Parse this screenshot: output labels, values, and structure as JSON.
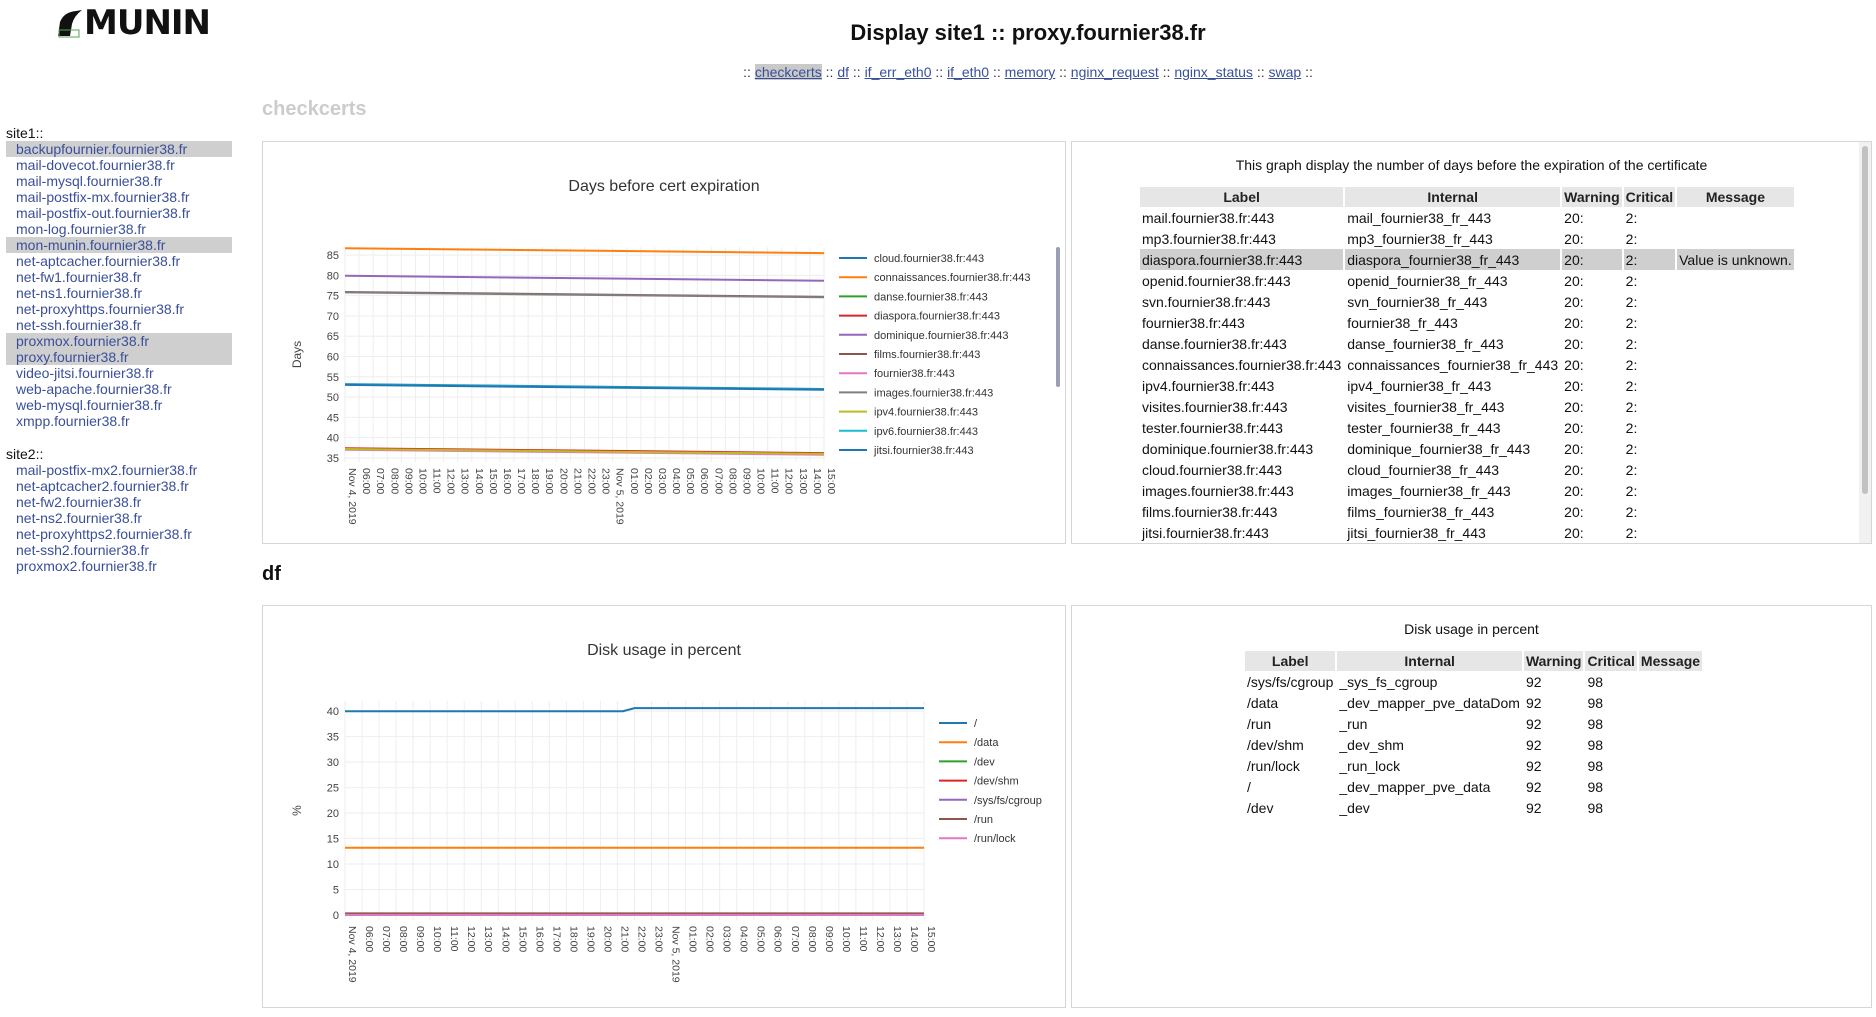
{
  "app": {
    "logo_text": "MUNIN",
    "title": "Display site1 :: proxy.fournier38.fr"
  },
  "nav": {
    "sep": "::",
    "plugins": [
      "checkcerts",
      "df",
      "if_err_eth0",
      "if_eth0",
      "memory",
      "nginx_request",
      "nginx_status",
      "swap"
    ],
    "active": "checkcerts"
  },
  "sidebar": {
    "groups": [
      {
        "name": "site1::",
        "hosts": [
          {
            "label": "backupfournier.fournier38.fr",
            "highlight": true
          },
          {
            "label": "mail-dovecot.fournier38.fr",
            "highlight": false
          },
          {
            "label": "mail-mysql.fournier38.fr",
            "highlight": false
          },
          {
            "label": "mail-postfix-mx.fournier38.fr",
            "highlight": false
          },
          {
            "label": "mail-postfix-out.fournier38.fr",
            "highlight": false
          },
          {
            "label": "mon-log.fournier38.fr",
            "highlight": false
          },
          {
            "label": "mon-munin.fournier38.fr",
            "highlight": true
          },
          {
            "label": "net-aptcacher.fournier38.fr",
            "highlight": false
          },
          {
            "label": "net-fw1.fournier38.fr",
            "highlight": false
          },
          {
            "label": "net-ns1.fournier38.fr",
            "highlight": false
          },
          {
            "label": "net-proxyhttps.fournier38.fr",
            "highlight": false
          },
          {
            "label": "net-ssh.fournier38.fr",
            "highlight": false
          },
          {
            "label": "proxmox.fournier38.fr",
            "highlight": true
          },
          {
            "label": "proxy.fournier38.fr",
            "highlight": true
          },
          {
            "label": "video-jitsi.fournier38.fr",
            "highlight": false
          },
          {
            "label": "web-apache.fournier38.fr",
            "highlight": false
          },
          {
            "label": "web-mysql.fournier38.fr",
            "highlight": false
          },
          {
            "label": "xmpp.fournier38.fr",
            "highlight": false
          }
        ]
      },
      {
        "name": "site2::",
        "hosts": [
          {
            "label": "mail-postfix-mx2.fournier38.fr",
            "highlight": false
          },
          {
            "label": "net-aptcacher2.fournier38.fr",
            "highlight": false
          },
          {
            "label": "net-fw2.fournier38.fr",
            "highlight": false
          },
          {
            "label": "net-ns2.fournier38.fr",
            "highlight": false
          },
          {
            "label": "net-proxyhttps2.fournier38.fr",
            "highlight": false
          },
          {
            "label": "net-ssh2.fournier38.fr",
            "highlight": false
          },
          {
            "label": "proxmox2.fournier38.fr",
            "highlight": false
          }
        ]
      }
    ]
  },
  "sections": {
    "checkcerts": {
      "title": "checkcerts",
      "info_caption": "This graph display the number of days before the expiration of the certificate",
      "columns": [
        "Label",
        "Internal",
        "Warning",
        "Critical",
        "Message"
      ],
      "rows": [
        {
          "label": "mail.fournier38.fr:443",
          "internal": "mail_fournier38_fr_443",
          "warning": "20:",
          "critical": "2:",
          "message": "",
          "highlight": false
        },
        {
          "label": "mp3.fournier38.fr:443",
          "internal": "mp3_fournier38_fr_443",
          "warning": "20:",
          "critical": "2:",
          "message": "",
          "highlight": false
        },
        {
          "label": "diaspora.fournier38.fr:443",
          "internal": "diaspora_fournier38_fr_443",
          "warning": "20:",
          "critical": "2:",
          "message": "Value is unknown.",
          "highlight": true
        },
        {
          "label": "openid.fournier38.fr:443",
          "internal": "openid_fournier38_fr_443",
          "warning": "20:",
          "critical": "2:",
          "message": "",
          "highlight": false
        },
        {
          "label": "svn.fournier38.fr:443",
          "internal": "svn_fournier38_fr_443",
          "warning": "20:",
          "critical": "2:",
          "message": "",
          "highlight": false
        },
        {
          "label": "fournier38.fr:443",
          "internal": "fournier38_fr_443",
          "warning": "20:",
          "critical": "2:",
          "message": "",
          "highlight": false
        },
        {
          "label": "danse.fournier38.fr:443",
          "internal": "danse_fournier38_fr_443",
          "warning": "20:",
          "critical": "2:",
          "message": "",
          "highlight": false
        },
        {
          "label": "connaissances.fournier38.fr:443",
          "internal": "connaissances_fournier38_fr_443",
          "warning": "20:",
          "critical": "2:",
          "message": "",
          "highlight": false
        },
        {
          "label": "ipv4.fournier38.fr:443",
          "internal": "ipv4_fournier38_fr_443",
          "warning": "20:",
          "critical": "2:",
          "message": "",
          "highlight": false
        },
        {
          "label": "visites.fournier38.fr:443",
          "internal": "visites_fournier38_fr_443",
          "warning": "20:",
          "critical": "2:",
          "message": "",
          "highlight": false
        },
        {
          "label": "tester.fournier38.fr:443",
          "internal": "tester_fournier38_fr_443",
          "warning": "20:",
          "critical": "2:",
          "message": "",
          "highlight": false
        },
        {
          "label": "dominique.fournier38.fr:443",
          "internal": "dominique_fournier38_fr_443",
          "warning": "20:",
          "critical": "2:",
          "message": "",
          "highlight": false
        },
        {
          "label": "cloud.fournier38.fr:443",
          "internal": "cloud_fournier38_fr_443",
          "warning": "20:",
          "critical": "2:",
          "message": "",
          "highlight": false
        },
        {
          "label": "images.fournier38.fr:443",
          "internal": "images_fournier38_fr_443",
          "warning": "20:",
          "critical": "2:",
          "message": "",
          "highlight": false
        },
        {
          "label": "films.fournier38.fr:443",
          "internal": "films_fournier38_fr_443",
          "warning": "20:",
          "critical": "2:",
          "message": "",
          "highlight": false
        },
        {
          "label": "jitsi.fournier38.fr:443",
          "internal": "jitsi_fournier38_fr_443",
          "warning": "20:",
          "critical": "2:",
          "message": "",
          "highlight": false
        }
      ]
    },
    "df": {
      "title": "df",
      "info_caption": "Disk usage in percent",
      "columns": [
        "Label",
        "Internal",
        "Warning",
        "Critical",
        "Message"
      ],
      "rows": [
        {
          "label": "/sys/fs/cgroup",
          "internal": "_sys_fs_cgroup",
          "warning": "92",
          "critical": "98",
          "message": "",
          "highlight": false
        },
        {
          "label": "/data",
          "internal": "_dev_mapper_pve_dataDom",
          "warning": "92",
          "critical": "98",
          "message": "",
          "highlight": false
        },
        {
          "label": "/run",
          "internal": "_run",
          "warning": "92",
          "critical": "98",
          "message": "",
          "highlight": false
        },
        {
          "label": "/dev/shm",
          "internal": "_dev_shm",
          "warning": "92",
          "critical": "98",
          "message": "",
          "highlight": false
        },
        {
          "label": "/run/lock",
          "internal": "_run_lock",
          "warning": "92",
          "critical": "98",
          "message": "",
          "highlight": false
        },
        {
          "label": "/",
          "internal": "_dev_mapper_pve_data",
          "warning": "92",
          "critical": "98",
          "message": "",
          "highlight": false
        },
        {
          "label": "/dev",
          "internal": "_dev",
          "warning": "92",
          "critical": "98",
          "message": "",
          "highlight": false
        }
      ]
    }
  },
  "chart_data": [
    {
      "id": "checkcerts",
      "type": "line",
      "title": "Days before cert expiration",
      "ylabel": "Days",
      "xlabel": "",
      "ylim": [
        34,
        87
      ],
      "yticks": [
        35,
        40,
        45,
        50,
        55,
        60,
        65,
        70,
        75,
        80,
        85
      ],
      "grid": true,
      "legend_position": "right",
      "x": [
        "Nov 4, 2019",
        "06:00",
        "07:00",
        "08:00",
        "09:00",
        "10:00",
        "11:00",
        "12:00",
        "13:00",
        "14:00",
        "15:00",
        "16:00",
        "17:00",
        "18:00",
        "19:00",
        "20:00",
        "21:00",
        "22:00",
        "23:00",
        "Nov 5, 2019",
        "01:00",
        "02:00",
        "03:00",
        "04:00",
        "05:00",
        "06:00",
        "07:00",
        "08:00",
        "09:00",
        "10:00",
        "11:00",
        "12:00",
        "13:00",
        "14:00",
        "15:00"
      ],
      "series": [
        {
          "name": "cloud.fournier38.fr:443",
          "color": "#1f77b4",
          "start": 53.2,
          "end": 52.0
        },
        {
          "name": "connaissances.fournier38.fr:443",
          "color": "#ff7f0e",
          "start": 86.7,
          "end": 85.5
        },
        {
          "name": "danse.fournier38.fr:443",
          "color": "#2ca02c",
          "start": 37.3,
          "end": 36.1
        },
        {
          "name": "diaspora.fournier38.fr:443",
          "color": "#d62728",
          "start": 37.4,
          "end": 36.2
        },
        {
          "name": "dominique.fournier38.fr:443",
          "color": "#9467bd",
          "start": 79.9,
          "end": 78.7
        },
        {
          "name": "films.fournier38.fr:443",
          "color": "#8c564b",
          "start": 75.9,
          "end": 74.7
        },
        {
          "name": "fournier38.fr:443",
          "color": "#e377c2",
          "start": 37.0,
          "end": 35.8
        },
        {
          "name": "images.fournier38.fr:443",
          "color": "#7f7f7f",
          "start": 75.8,
          "end": 74.6
        },
        {
          "name": "ipv4.fournier38.fr:443",
          "color": "#bcbd22",
          "start": 37.2,
          "end": 36.0
        },
        {
          "name": "ipv6.fournier38.fr:443",
          "color": "#17becf",
          "start": 53.1,
          "end": 51.9
        },
        {
          "name": "jitsi.fournier38.fr:443",
          "color": "#1f77b4",
          "start": 53.0,
          "end": 51.8
        }
      ]
    },
    {
      "id": "df",
      "type": "line",
      "title": "Disk usage in percent",
      "ylabel": "%",
      "xlabel": "",
      "ylim": [
        -1,
        42
      ],
      "yticks": [
        0,
        5,
        10,
        15,
        20,
        25,
        30,
        35,
        40
      ],
      "grid": true,
      "legend_position": "right",
      "x": [
        "Nov 4, 2019",
        "06:00",
        "07:00",
        "08:00",
        "09:00",
        "10:00",
        "11:00",
        "12:00",
        "13:00",
        "14:00",
        "15:00",
        "16:00",
        "17:00",
        "18:00",
        "19:00",
        "20:00",
        "21:00",
        "22:00",
        "23:00",
        "Nov 5, 2019",
        "01:00",
        "02:00",
        "03:00",
        "04:00",
        "05:00",
        "06:00",
        "07:00",
        "08:00",
        "09:00",
        "10:00",
        "11:00",
        "12:00",
        "13:00",
        "14:00",
        "15:00"
      ],
      "series": [
        {
          "name": "/",
          "color": "#1f77b4",
          "points": [
            [
              0,
              40.0
            ],
            [
              0.48,
              40.0
            ],
            [
              0.5,
              40.6
            ],
            [
              1,
              40.6
            ]
          ]
        },
        {
          "name": "/data",
          "color": "#ff7f0e",
          "points": [
            [
              0,
              13.2
            ],
            [
              1,
              13.2
            ]
          ]
        },
        {
          "name": "/dev",
          "color": "#2ca02c",
          "points": [
            [
              0,
              0.0
            ],
            [
              1,
              0.0
            ]
          ]
        },
        {
          "name": "/dev/shm",
          "color": "#d62728",
          "points": [
            [
              0,
              0.1
            ],
            [
              1,
              0.1
            ]
          ]
        },
        {
          "name": "/sys/fs/cgroup",
          "color": "#9467bd",
          "points": [
            [
              0,
              0.0
            ],
            [
              1,
              0.0
            ]
          ]
        },
        {
          "name": "/run",
          "color": "#8c564b",
          "points": [
            [
              0,
              0.3
            ],
            [
              1,
              0.3
            ]
          ]
        },
        {
          "name": "/run/lock",
          "color": "#e377c2",
          "points": [
            [
              0,
              0.0
            ],
            [
              1,
              0.0
            ]
          ]
        }
      ]
    }
  ]
}
